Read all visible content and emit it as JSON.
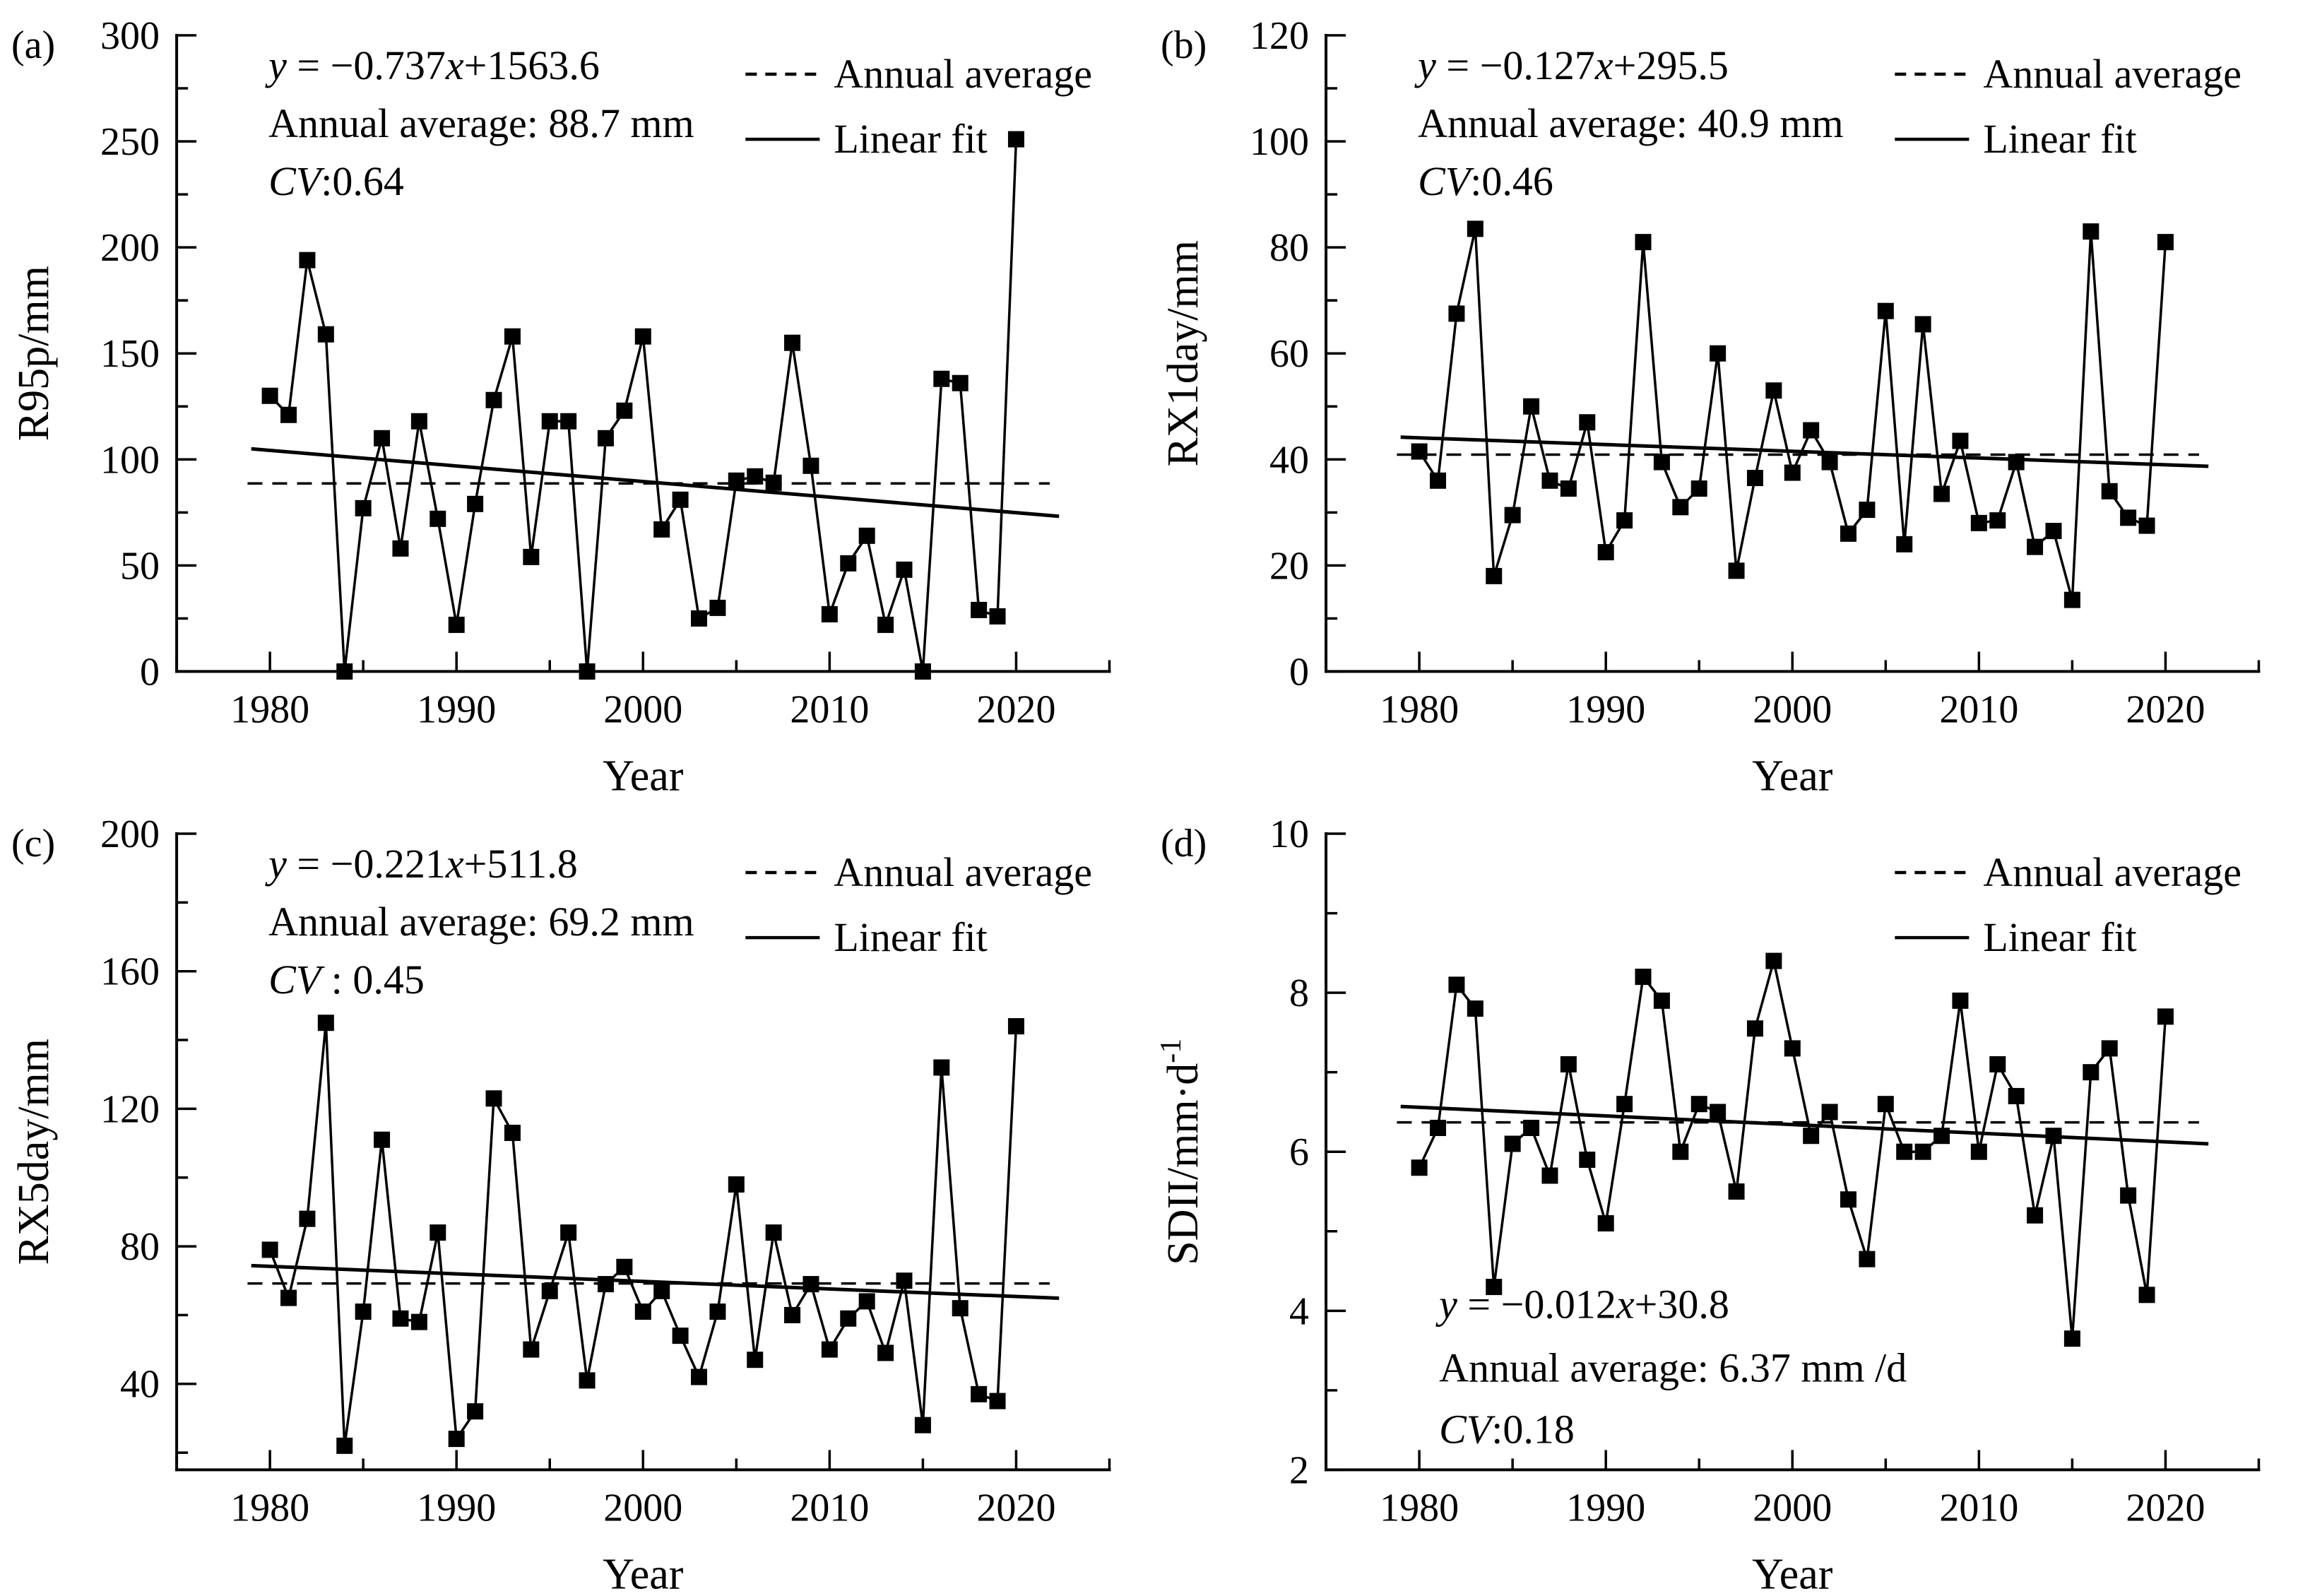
{
  "figure": {
    "background": "#ffffff",
    "ink": "#000000",
    "legend": {
      "dashed_label": "Annual average",
      "solid_label": "Linear fit"
    },
    "xlabel": "Year"
  },
  "chart_data": [
    {
      "id": "a",
      "type": "line",
      "panel_label": "(a)",
      "ylabel": "R95p/mm",
      "ylabel_sup": "",
      "xlabel": "Year",
      "equation": {
        "lhs": "y",
        "mid": " = −0.737",
        "varx": "x",
        "rest": "+1563.6"
      },
      "annual_average_text": "Annual average: 88.7 mm",
      "cv_label": "CV",
      "cv_rest": ":0.64",
      "annotation_position": "top-left",
      "legend_position": "top-right",
      "grid": false,
      "mean": 88.7,
      "mean_extent": [
        1978.8,
        2021.8
      ],
      "trend_line": {
        "x1": 1979,
        "y1": 105.0,
        "x2": 2022.3,
        "y2": 73.2
      },
      "xlim": [
        1975,
        2025
      ],
      "ylim": [
        0,
        300
      ],
      "xticks": [
        1980,
        1990,
        2000,
        2010,
        2020
      ],
      "xminor_step": 5,
      "yticks": [
        0,
        50,
        100,
        150,
        200,
        250,
        300
      ],
      "yminor_step": 25,
      "x": [
        1980,
        1981,
        1982,
        1983,
        1984,
        1985,
        1986,
        1987,
        1988,
        1989,
        1990,
        1991,
        1992,
        1993,
        1994,
        1995,
        1996,
        1997,
        1998,
        1999,
        2000,
        2001,
        2002,
        2003,
        2004,
        2005,
        2006,
        2007,
        2008,
        2009,
        2010,
        2011,
        2012,
        2013,
        2014,
        2015,
        2016,
        2017,
        2018,
        2019,
        2020
      ],
      "values": [
        130,
        121,
        194,
        159,
        0,
        77,
        110,
        58,
        118,
        72,
        22,
        79,
        128,
        158,
        54,
        118,
        118,
        0,
        110,
        123,
        158,
        67,
        81,
        25,
        30,
        90,
        92,
        89,
        155,
        97,
        27,
        51,
        64,
        22,
        48,
        0,
        138,
        136,
        29,
        26,
        251
      ]
    },
    {
      "id": "b",
      "type": "line",
      "panel_label": "(b)",
      "ylabel": "RX1day/mm",
      "ylabel_sup": "",
      "xlabel": "Year",
      "equation": {
        "lhs": "y",
        "mid": " = −0.127",
        "varx": "x",
        "rest": "+295.5"
      },
      "annual_average_text": "Annual average: 40.9 mm",
      "cv_label": "CV",
      "cv_rest": ":0.46",
      "annotation_position": "top-left",
      "legend_position": "top-right",
      "grid": false,
      "mean": 40.9,
      "mean_extent": [
        1978.8,
        2021.8
      ],
      "trend_line": {
        "x1": 1979,
        "y1": 44.2,
        "x2": 2022.3,
        "y2": 38.7
      },
      "xlim": [
        1975,
        2025
      ],
      "ylim": [
        0,
        120
      ],
      "xticks": [
        1980,
        1990,
        2000,
        2010,
        2020
      ],
      "xminor_step": 5,
      "yticks": [
        0,
        20,
        40,
        60,
        80,
        100,
        120
      ],
      "yminor_step": 10,
      "x": [
        1980,
        1981,
        1982,
        1983,
        1984,
        1985,
        1986,
        1987,
        1988,
        1989,
        1990,
        1991,
        1992,
        1993,
        1994,
        1995,
        1996,
        1997,
        1998,
        1999,
        2000,
        2001,
        2002,
        2003,
        2004,
        2005,
        2006,
        2007,
        2008,
        2009,
        2010,
        2011,
        2012,
        2013,
        2014,
        2015,
        2016,
        2017,
        2018,
        2019,
        2020
      ],
      "values": [
        41.5,
        36,
        67.5,
        83.5,
        18,
        29.5,
        50,
        36,
        34.5,
        47,
        22.5,
        28.5,
        81,
        39.5,
        31,
        34.5,
        60,
        19,
        36.5,
        53,
        37.5,
        45.5,
        39.5,
        26,
        30.5,
        68,
        24,
        65.5,
        33.5,
        43.5,
        28,
        28.5,
        39.5,
        23.5,
        26.5,
        13.5,
        83,
        34,
        29,
        27.5,
        81
      ]
    },
    {
      "id": "c",
      "type": "line",
      "panel_label": "(c)",
      "ylabel": "RX5day/mm",
      "ylabel_sup": "",
      "xlabel": "Year",
      "equation": {
        "lhs": "y",
        "mid": " = −0.221",
        "varx": "x",
        "rest": "+511.8"
      },
      "annual_average_text": "Annual average: 69.2 mm",
      "cv_label": "CV",
      "cv_rest": " : 0.45",
      "annotation_position": "top-left",
      "legend_position": "top-right",
      "grid": false,
      "mean": 69.2,
      "mean_extent": [
        1978.8,
        2021.8
      ],
      "trend_line": {
        "x1": 1979,
        "y1": 74.4,
        "x2": 2022.3,
        "y2": 64.9
      },
      "xlim": [
        1975,
        2025
      ],
      "ylim": [
        15,
        200
      ],
      "xticks": [
        1980,
        1990,
        2000,
        2010,
        2020
      ],
      "xminor_step": 5,
      "yticks": [
        40,
        80,
        120,
        160,
        200
      ],
      "yminor_step": 20,
      "x": [
        1980,
        1981,
        1982,
        1983,
        1984,
        1985,
        1986,
        1987,
        1988,
        1989,
        1990,
        1991,
        1992,
        1993,
        1994,
        1995,
        1996,
        1997,
        1998,
        1999,
        2000,
        2001,
        2002,
        2003,
        2004,
        2005,
        2006,
        2007,
        2008,
        2009,
        2010,
        2011,
        2012,
        2013,
        2014,
        2015,
        2016,
        2017,
        2018,
        2019,
        2020
      ],
      "values": [
        79,
        65,
        88,
        145,
        22,
        61,
        111,
        59,
        58,
        84,
        24,
        32,
        123,
        113,
        50,
        67,
        84,
        41,
        69,
        74,
        61,
        67,
        54,
        42,
        61,
        98,
        47,
        84,
        60,
        69,
        50,
        59,
        64,
        49,
        70,
        28,
        132,
        62,
        37,
        35,
        144
      ]
    },
    {
      "id": "d",
      "type": "line",
      "panel_label": "(d)",
      "ylabel": "SDII/mm·d",
      "ylabel_sup": "-1",
      "xlabel": "Year",
      "equation": {
        "lhs": "y",
        "mid": " = −0.012",
        "varx": "x",
        "rest": "+30.8"
      },
      "annual_average_text": "Annual average: 6.37 mm /d",
      "cv_label": "CV",
      "cv_rest": ":0.18",
      "annotation_position": "bottom-left",
      "legend_position": "top-right",
      "grid": false,
      "mean": 6.37,
      "mean_extent": [
        1978.8,
        2021.8
      ],
      "trend_line": {
        "x1": 1979,
        "y1": 6.57,
        "x2": 2022.3,
        "y2": 6.1
      },
      "xlim": [
        1975,
        2025
      ],
      "ylim": [
        2,
        10
      ],
      "xticks": [
        1980,
        1990,
        2000,
        2010,
        2020
      ],
      "xminor_step": 5,
      "yticks": [
        2,
        4,
        6,
        8,
        10
      ],
      "yminor_step": 1,
      "x": [
        1980,
        1981,
        1982,
        1983,
        1984,
        1985,
        1986,
        1987,
        1988,
        1989,
        1990,
        1991,
        1992,
        1993,
        1994,
        1995,
        1996,
        1997,
        1998,
        1999,
        2000,
        2001,
        2002,
        2003,
        2004,
        2005,
        2006,
        2007,
        2008,
        2009,
        2010,
        2011,
        2012,
        2013,
        2014,
        2015,
        2016,
        2017,
        2018,
        2019,
        2020
      ],
      "values": [
        5.8,
        6.3,
        8.1,
        7.8,
        4.3,
        6.1,
        6.3,
        5.7,
        7.1,
        5.9,
        5.1,
        6.6,
        8.2,
        7.9,
        6.0,
        6.6,
        6.5,
        5.5,
        7.55,
        8.4,
        7.3,
        6.2,
        6.5,
        5.4,
        4.65,
        6.6,
        6.0,
        6.0,
        6.2,
        7.9,
        6.0,
        7.1,
        6.7,
        5.2,
        6.2,
        3.65,
        7.0,
        7.3,
        5.45,
        4.2,
        7.7
      ]
    }
  ]
}
